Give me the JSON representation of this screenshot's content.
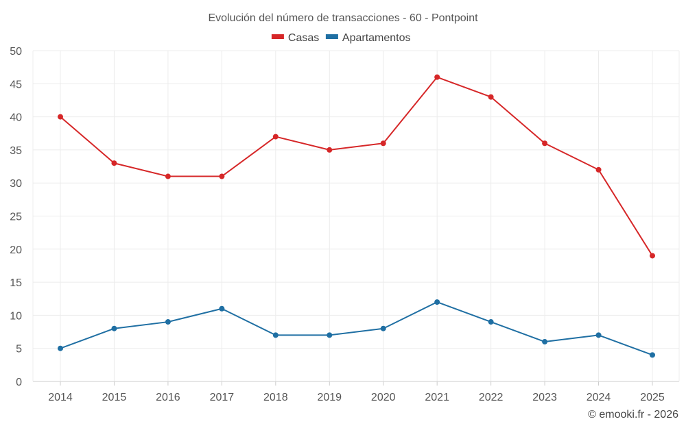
{
  "chart_data": {
    "type": "line",
    "title": "Evolución del número de transacciones - 60 - Pontpoint",
    "categories": [
      "2014",
      "2015",
      "2016",
      "2017",
      "2018",
      "2019",
      "2020",
      "2021",
      "2022",
      "2023",
      "2024",
      "2025"
    ],
    "series": [
      {
        "name": "Casas",
        "color": "#d62728",
        "values": [
          40,
          33,
          31,
          31,
          37,
          35,
          36,
          46,
          43,
          36,
          32,
          19
        ]
      },
      {
        "name": "Apartamentos",
        "color": "#1f6fa3",
        "values": [
          5,
          8,
          9,
          11,
          7,
          7,
          8,
          12,
          9,
          6,
          7,
          4
        ]
      }
    ],
    "ylim": [
      0,
      50
    ],
    "yticks": [
      0,
      5,
      10,
      15,
      20,
      25,
      30,
      35,
      40,
      45,
      50
    ],
    "xlabel": "",
    "ylabel": "",
    "grid": true,
    "legend_position": "top-center"
  },
  "credit": "© emooki.fr - 2026"
}
